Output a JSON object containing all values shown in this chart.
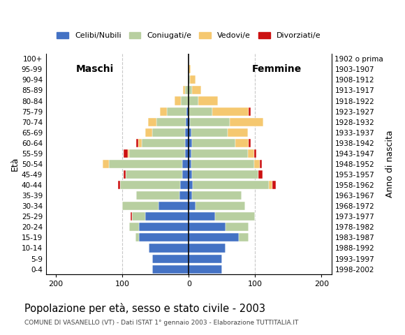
{
  "age_groups": [
    "0-4",
    "5-9",
    "10-14",
    "15-19",
    "20-24",
    "25-29",
    "30-34",
    "35-39",
    "40-44",
    "45-49",
    "50-54",
    "55-59",
    "60-64",
    "65-69",
    "70-74",
    "75-79",
    "80-84",
    "85-89",
    "90-94",
    "95-99",
    "100+"
  ],
  "birth_years": [
    "1998-2002",
    "1993-1997",
    "1988-1992",
    "1983-1987",
    "1978-1982",
    "1973-1977",
    "1968-1972",
    "1963-1967",
    "1958-1962",
    "1953-1957",
    "1948-1952",
    "1943-1947",
    "1938-1942",
    "1933-1937",
    "1928-1932",
    "1923-1927",
    "1918-1922",
    "1913-1917",
    "1908-1912",
    "1903-1907",
    "1902 o prima"
  ],
  "colors": {
    "celibi": "#4472c4",
    "coniugati": "#b8cfa0",
    "vedovi": "#f5c870",
    "divorziati": "#cc1111"
  },
  "males": {
    "celibi": [
      55,
      55,
      60,
      75,
      75,
      65,
      45,
      14,
      13,
      10,
      10,
      5,
      6,
      5,
      4,
      3,
      0,
      0,
      0,
      0,
      0
    ],
    "coniugati": [
      0,
      0,
      0,
      5,
      15,
      20,
      55,
      65,
      90,
      85,
      110,
      85,
      65,
      50,
      45,
      30,
      12,
      5,
      1,
      0,
      0
    ],
    "vedovi": [
      0,
      0,
      0,
      0,
      0,
      0,
      0,
      0,
      0,
      0,
      10,
      2,
      5,
      10,
      12,
      10,
      9,
      4,
      0,
      0,
      0
    ],
    "divorziati": [
      0,
      0,
      0,
      0,
      0,
      3,
      0,
      0,
      4,
      3,
      0,
      6,
      3,
      0,
      0,
      0,
      0,
      0,
      0,
      0,
      0
    ]
  },
  "females": {
    "celibi": [
      50,
      50,
      55,
      75,
      55,
      40,
      10,
      5,
      6,
      5,
      4,
      4,
      5,
      4,
      2,
      0,
      0,
      0,
      0,
      0,
      0
    ],
    "coniugati": [
      0,
      0,
      0,
      15,
      35,
      60,
      75,
      75,
      115,
      100,
      95,
      85,
      65,
      55,
      60,
      35,
      14,
      5,
      2,
      0,
      0
    ],
    "vedovi": [
      0,
      0,
      0,
      0,
      0,
      0,
      0,
      0,
      5,
      0,
      8,
      10,
      20,
      30,
      50,
      55,
      30,
      14,
      8,
      3,
      0
    ],
    "divorziati": [
      0,
      0,
      0,
      0,
      0,
      0,
      0,
      0,
      5,
      6,
      3,
      3,
      3,
      0,
      0,
      3,
      0,
      0,
      0,
      0,
      0
    ]
  },
  "xlim": [
    -215,
    215
  ],
  "xticks": [
    -200,
    -100,
    0,
    100,
    200
  ],
  "xticklabels": [
    "200",
    "100",
    "0",
    "100",
    "200"
  ],
  "title": "Popolazione per età, sesso e stato civile - 2003",
  "subtitle": "COMUNE DI VASANELLO (VT) - Dati ISTAT 1° gennaio 2003 - Elaborazione TUTTITALIA.IT",
  "ylabel_left": "Età",
  "ylabel_right": "Anno di nascita",
  "label_maschi": "Maschi",
  "label_femmine": "Femmine",
  "legend_labels": [
    "Celibi/Nubili",
    "Coniugati/e",
    "Vedovi/e",
    "Divorziati/e"
  ],
  "bg_color": "#ffffff",
  "grid_color": "#c8c8c8"
}
